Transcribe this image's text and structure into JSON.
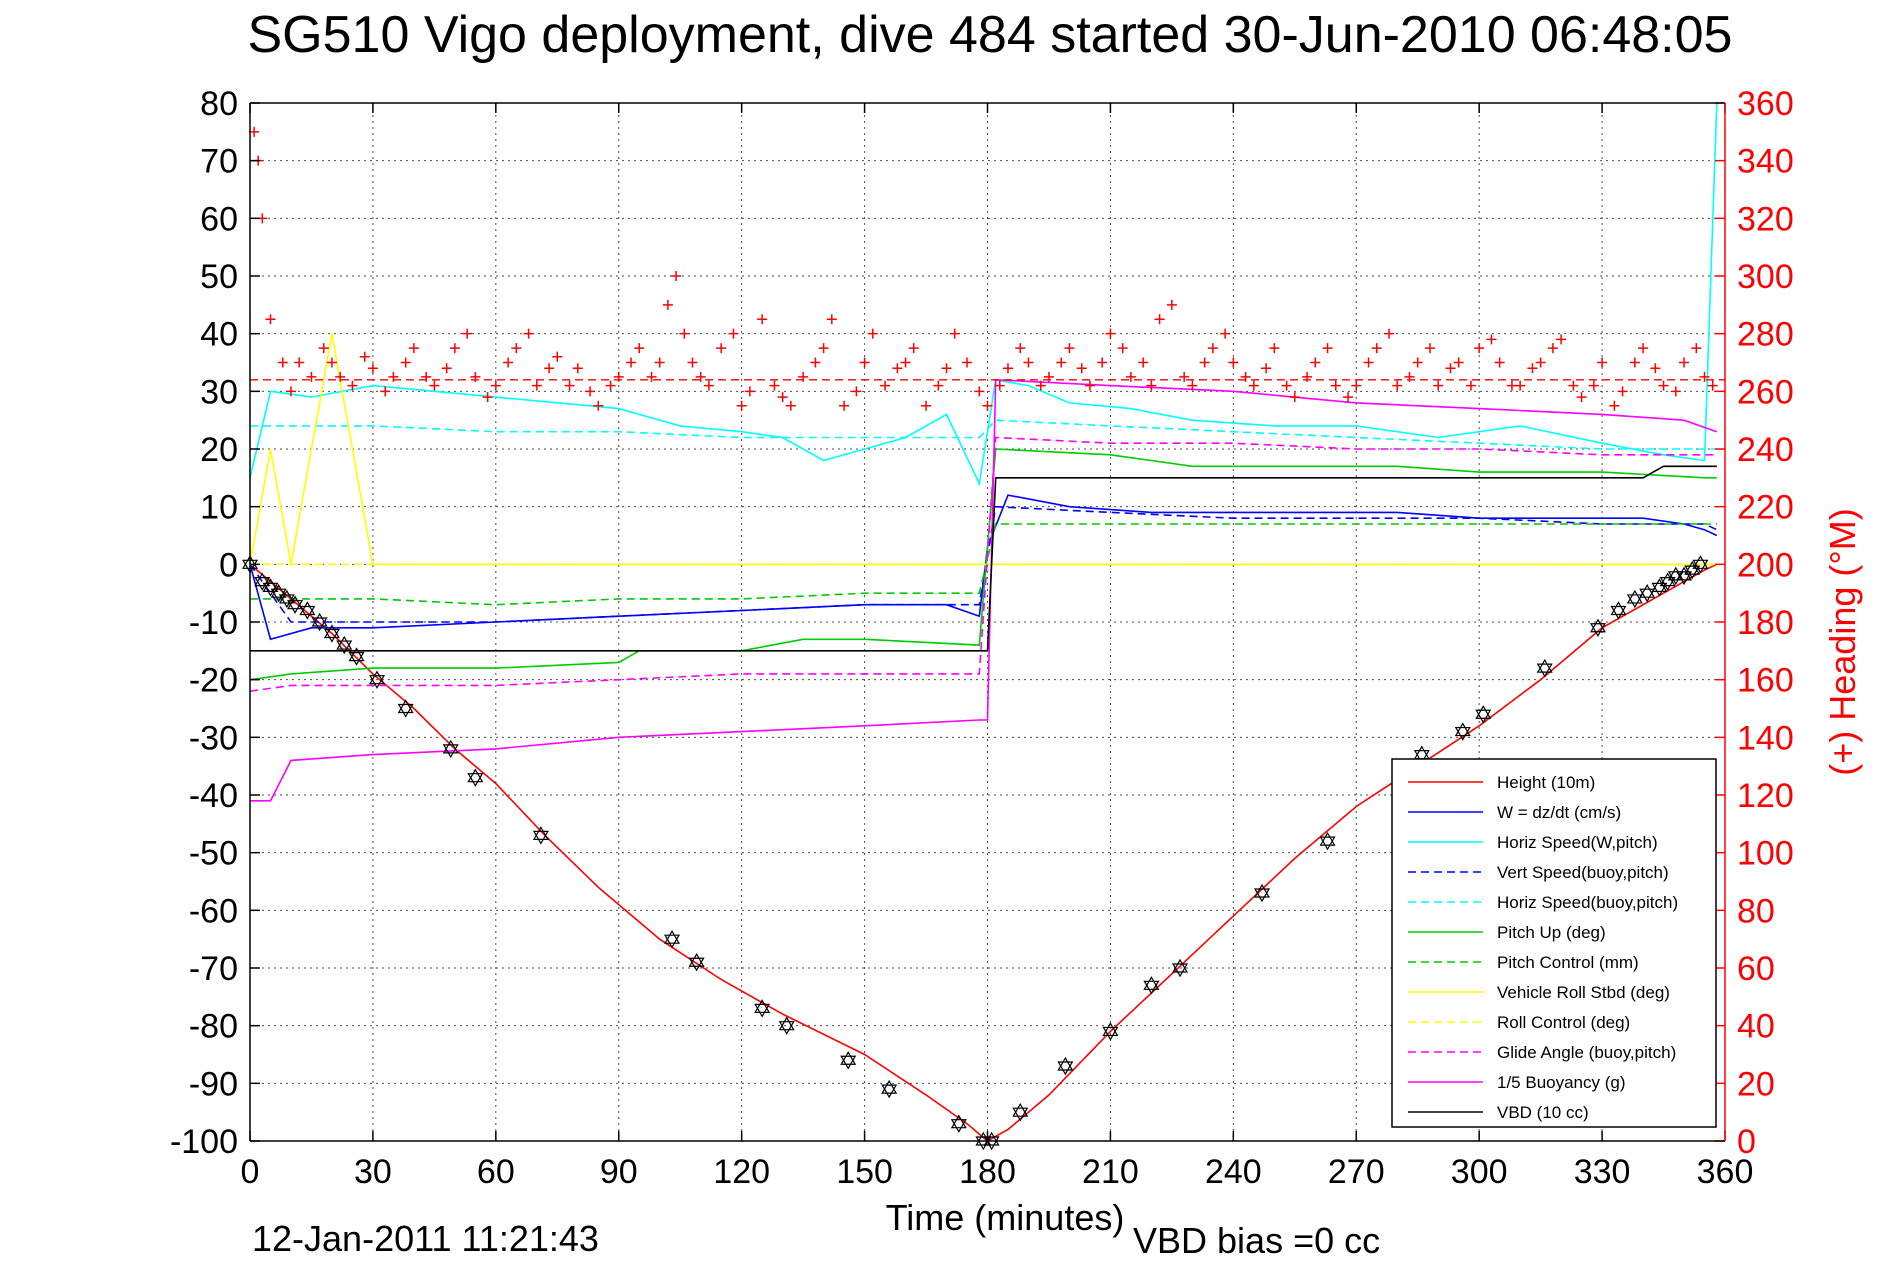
{
  "chart_data": {
    "type": "line",
    "title": "SG510 Vigo deployment, dive 484 started 30-Jun-2010 06:48:05",
    "xlabel": "Time (minutes)",
    "ylabel_right": "(+) Heading (°M)",
    "xlim": [
      0,
      360
    ],
    "ylim": [
      -100,
      80
    ],
    "ylim_right": [
      0,
      360
    ],
    "x_ticks": [
      "0",
      "30",
      "60",
      "90",
      "120",
      "150",
      "180",
      "210",
      "240",
      "270",
      "300",
      "330",
      "360"
    ],
    "y_ticks": [
      "80",
      "70",
      "60",
      "50",
      "40",
      "30",
      "20",
      "10",
      "0",
      "-10",
      "-20",
      "-30",
      "-40",
      "-50",
      "-60",
      "-70",
      "-80",
      "-90",
      "-100"
    ],
    "y_ticks_right": [
      "360",
      "340",
      "320",
      "300",
      "280",
      "260",
      "240",
      "220",
      "200",
      "180",
      "160",
      "140",
      "120",
      "100",
      "80",
      "60",
      "40",
      "20",
      "0"
    ],
    "grid": true,
    "legend_position": "bottom-right",
    "footer_timestamp": "12-Jan-2011 11:21:43",
    "footer_note": "VBD bias =0 cc",
    "series": [
      {
        "name": "Height (10m)",
        "color": "#ff0000",
        "style": "solid",
        "x": [
          0,
          10,
          20,
          30,
          40,
          50,
          60,
          72,
          85,
          100,
          115,
          130,
          150,
          165,
          175,
          180,
          185,
          195,
          210,
          225,
          240,
          255,
          270,
          285,
          300,
          315,
          330,
          345,
          355,
          358
        ],
        "y": [
          0,
          -6,
          -12,
          -19,
          -25,
          -32,
          -38,
          -47,
          -56,
          -65,
          -72,
          -78,
          -85,
          -92,
          -97,
          -100,
          -98,
          -92,
          -81,
          -71,
          -61,
          -51,
          -42,
          -35,
          -28,
          -20,
          -11,
          -5,
          -1,
          0
        ]
      },
      {
        "name": "W = dz/dt (cm/s)",
        "color": "#0000ff",
        "style": "solid",
        "x": [
          0,
          5,
          15,
          30,
          60,
          90,
          120,
          150,
          170,
          178,
          180,
          185,
          200,
          220,
          250,
          280,
          300,
          320,
          340,
          350,
          355,
          358
        ],
        "y": [
          0,
          -13,
          -11,
          -11,
          -10,
          -9,
          -8,
          -7,
          -7,
          -9,
          3,
          12,
          10,
          9,
          9,
          9,
          8,
          8,
          8,
          7,
          6,
          5
        ]
      },
      {
        "name": "Horiz Speed(W,pitch)",
        "color": "#00ffff",
        "style": "solid",
        "x": [
          0,
          5,
          15,
          30,
          60,
          90,
          105,
          120,
          130,
          140,
          150,
          160,
          170,
          178,
          182,
          190,
          200,
          215,
          230,
          250,
          270,
          290,
          310,
          330,
          345,
          355,
          358
        ],
        "y": [
          15,
          30,
          29,
          31,
          29,
          27,
          24,
          23,
          22,
          18,
          20,
          22,
          26,
          14,
          32,
          31,
          28,
          27,
          25,
          24,
          24,
          22,
          24,
          21,
          19,
          18,
          80
        ]
      },
      {
        "name": "Vert Speed(buoy,pitch)",
        "color": "#0000ff",
        "style": "dashed",
        "x": [
          0,
          10,
          30,
          60,
          90,
          120,
          150,
          178,
          182,
          210,
          240,
          270,
          300,
          330,
          355,
          358
        ],
        "y": [
          0,
          -10,
          -10,
          -10,
          -9,
          -8,
          -7,
          -7,
          10,
          9,
          8,
          8,
          8,
          7,
          7,
          6
        ]
      },
      {
        "name": "Horiz Speed(buoy,pitch)",
        "color": "#00ffff",
        "style": "dashed",
        "x": [
          0,
          10,
          30,
          60,
          90,
          120,
          150,
          178,
          182,
          210,
          240,
          270,
          300,
          330,
          355,
          358
        ],
        "y": [
          24,
          24,
          24,
          23,
          23,
          22,
          22,
          22,
          25,
          24,
          23,
          22,
          21,
          20,
          20,
          20
        ]
      },
      {
        "name": "Pitch Up (deg)",
        "color": "#00cc00",
        "style": "solid",
        "x": [
          0,
          10,
          30,
          60,
          90,
          95,
          120,
          135,
          150,
          178,
          182,
          210,
          230,
          240,
          280,
          300,
          330,
          355,
          358
        ],
        "y": [
          -20,
          -19,
          -18,
          -18,
          -17,
          -15,
          -15,
          -13,
          -13,
          -14,
          20,
          19,
          17,
          17,
          17,
          16,
          16,
          15,
          15
        ]
      },
      {
        "name": "Pitch Control (mm)",
        "color": "#00cc00",
        "style": "dashed",
        "x": [
          0,
          10,
          30,
          60,
          90,
          120,
          150,
          178,
          182,
          210,
          240,
          270,
          300,
          330,
          355,
          358
        ],
        "y": [
          -6,
          -6,
          -6,
          -7,
          -6,
          -6,
          -5,
          -5,
          7,
          7,
          7,
          7,
          7,
          7,
          7,
          7
        ]
      },
      {
        "name": "Vehicle Roll Stbd (deg)",
        "color": "#ffff00",
        "style": "solid",
        "x": [
          0,
          5,
          10,
          20,
          30,
          60,
          90,
          120,
          150,
          178,
          182,
          210,
          240,
          270,
          300,
          330,
          355,
          358
        ],
        "y": [
          0,
          20,
          0,
          40,
          0,
          0,
          0,
          0,
          0,
          0,
          0,
          0,
          0,
          0,
          0,
          0,
          0,
          0
        ]
      },
      {
        "name": "Roll Control (deg)",
        "color": "#ffff00",
        "style": "dashed",
        "x": [
          0,
          178,
          182,
          358
        ],
        "y": [
          0,
          0,
          0,
          0
        ]
      },
      {
        "name": "Glide Angle (buoy,pitch)",
        "color": "#ff00ff",
        "style": "dashed",
        "x": [
          0,
          10,
          30,
          60,
          90,
          120,
          150,
          178,
          182,
          210,
          240,
          270,
          300,
          330,
          355,
          358
        ],
        "y": [
          -22,
          -21,
          -21,
          -21,
          -20,
          -19,
          -19,
          -19,
          22,
          21,
          21,
          20,
          20,
          19,
          19,
          19
        ]
      },
      {
        "name": "1/5 Buoyancy (g)",
        "color": "#ff00ff",
        "style": "solid",
        "x": [
          0,
          5,
          10,
          30,
          60,
          90,
          120,
          150,
          178,
          180,
          182,
          210,
          240,
          270,
          300,
          330,
          350,
          358
        ],
        "y": [
          -41,
          -41,
          -34,
          -33,
          -32,
          -30,
          -29,
          -28,
          -27,
          -27,
          32,
          31,
          30,
          28,
          27,
          26,
          25,
          23
        ]
      },
      {
        "name": "VBD (10 cc)",
        "color": "#000000",
        "style": "solid",
        "x": [
          0,
          5,
          180,
          182,
          340,
          345,
          358
        ],
        "y": [
          -15,
          -15,
          -15,
          15,
          15,
          17,
          17
        ]
      }
    ],
    "heading_series": {
      "name": "(+) Heading",
      "color": "#ff0000",
      "marker": "+",
      "mean": 264,
      "x": [
        1,
        2,
        3,
        5,
        8,
        10,
        12,
        15,
        18,
        20,
        22,
        25,
        28,
        30,
        33,
        35,
        38,
        40,
        43,
        45,
        48,
        50,
        53,
        55,
        58,
        60,
        63,
        65,
        68,
        70,
        73,
        75,
        78,
        80,
        83,
        85,
        88,
        90,
        93,
        95,
        98,
        100,
        102,
        104,
        106,
        108,
        110,
        112,
        115,
        118,
        120,
        122,
        125,
        128,
        130,
        132,
        135,
        138,
        140,
        142,
        145,
        148,
        150,
        152,
        155,
        158,
        160,
        162,
        165,
        168,
        170,
        172,
        175,
        178,
        180,
        183,
        185,
        188,
        190,
        193,
        195,
        198,
        200,
        203,
        205,
        208,
        210,
        213,
        215,
        218,
        220,
        222,
        225,
        228,
        230,
        233,
        235,
        238,
        240,
        243,
        245,
        248,
        250,
        253,
        255,
        258,
        260,
        263,
        265,
        268,
        270,
        273,
        275,
        278,
        280,
        283,
        285,
        288,
        290,
        293,
        295,
        298,
        300,
        303,
        305,
        308,
        310,
        313,
        315,
        318,
        320,
        323,
        325,
        328,
        330,
        333,
        335,
        338,
        340,
        343,
        345,
        348,
        350,
        353,
        355,
        357
      ],
      "y": [
        350,
        340,
        320,
        285,
        270,
        260,
        270,
        265,
        275,
        270,
        265,
        262,
        272,
        268,
        260,
        265,
        270,
        275,
        265,
        262,
        268,
        275,
        280,
        265,
        258,
        262,
        270,
        275,
        280,
        262,
        268,
        272,
        262,
        268,
        260,
        255,
        262,
        265,
        270,
        275,
        265,
        270,
        290,
        300,
        280,
        270,
        265,
        262,
        275,
        280,
        255,
        260,
        285,
        262,
        258,
        255,
        265,
        270,
        275,
        285,
        255,
        260,
        270,
        280,
        262,
        268,
        270,
        275,
        255,
        262,
        268,
        280,
        270,
        260,
        255,
        262,
        268,
        275,
        270,
        262,
        265,
        270,
        275,
        268,
        262,
        270,
        280,
        275,
        265,
        270,
        262,
        285,
        290,
        265,
        262,
        270,
        275,
        280,
        270,
        265,
        262,
        268,
        275,
        262,
        258,
        265,
        270,
        275,
        262,
        258,
        262,
        270,
        275,
        280,
        262,
        265,
        270,
        275,
        262,
        268,
        270,
        262,
        275,
        278,
        270,
        262,
        262,
        268,
        270,
        275,
        278,
        262,
        258,
        262,
        270,
        255,
        260,
        270,
        275,
        268,
        262,
        260,
        270,
        275,
        265,
        262
      ]
    },
    "depth_markers": {
      "name": "Height samples",
      "marker": "hexagram",
      "color": "#000000",
      "x": [
        0,
        3,
        5,
        7,
        9,
        11,
        14,
        17,
        20,
        23,
        26,
        31,
        38,
        49,
        55,
        71,
        103,
        109,
        125,
        131,
        146,
        156,
        173,
        179,
        181,
        188,
        199,
        210,
        220,
        227,
        247,
        263,
        286,
        296,
        301,
        316,
        329,
        334,
        338,
        341,
        344,
        346,
        348,
        350,
        352,
        354
      ],
      "y": [
        0,
        -3,
        -4,
        -5,
        -6,
        -7,
        -8,
        -10,
        -12,
        -14,
        -16,
        -20,
        -25,
        -32,
        -37,
        -47,
        -65,
        -69,
        -77,
        -80,
        -86,
        -91,
        -97,
        -100,
        -100,
        -95,
        -87,
        -81,
        -73,
        -70,
        -57,
        -48,
        -33,
        -29,
        -26,
        -18,
        -11,
        -8,
        -6,
        -5,
        -4,
        -3,
        -2,
        -2,
        -1,
        0
      ]
    }
  }
}
